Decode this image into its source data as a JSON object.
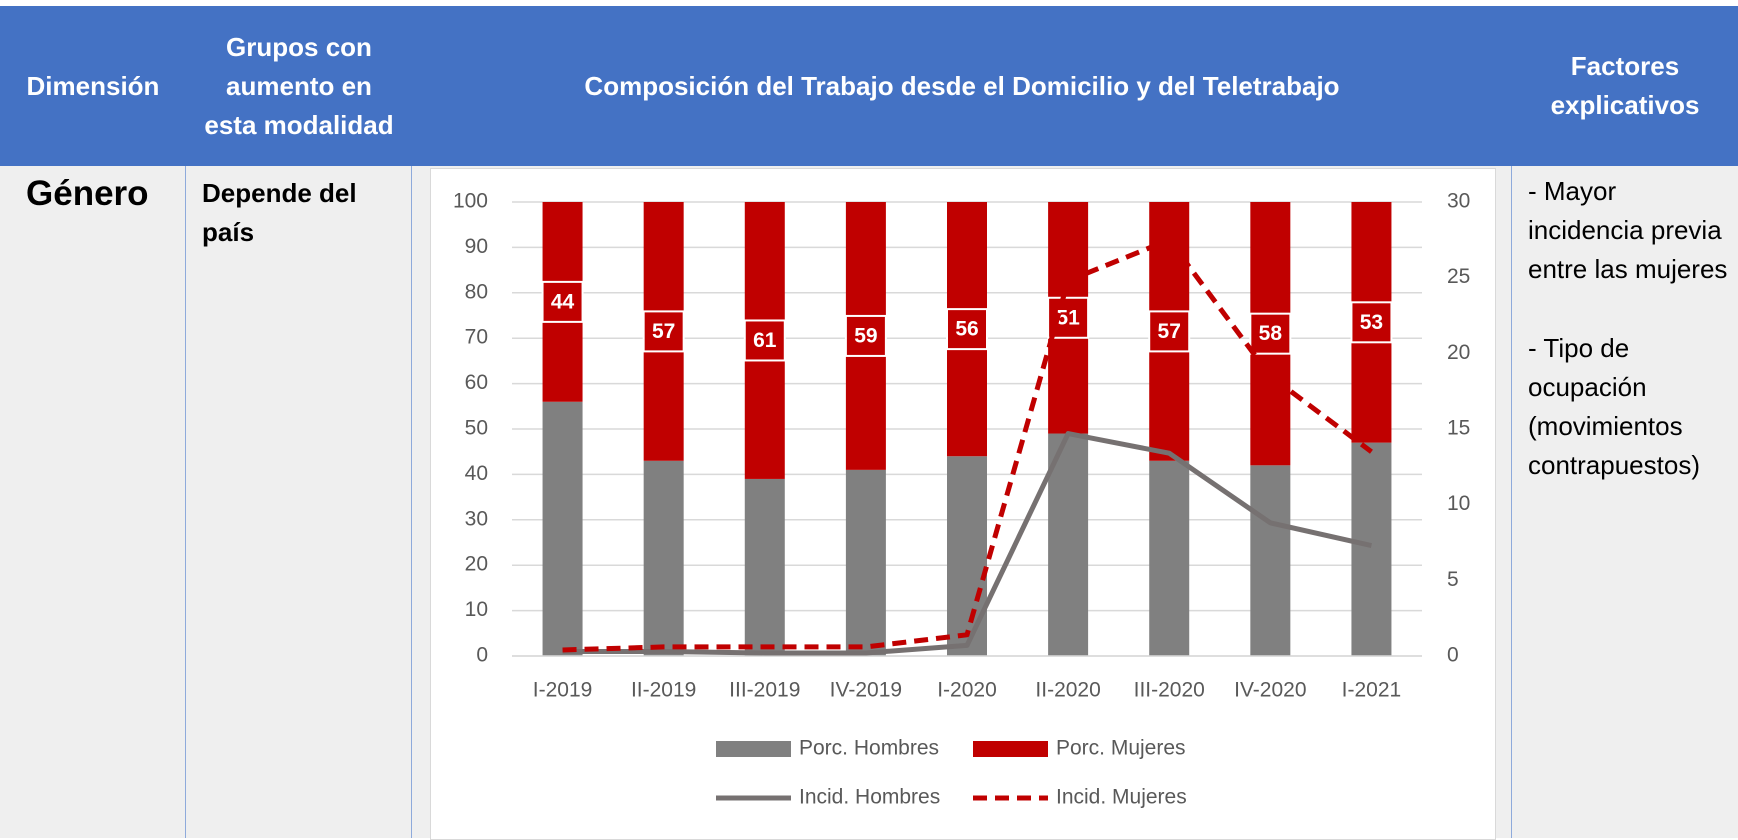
{
  "table": {
    "header": [
      "Dimensión",
      "Grupos con aumento en esta modalidad",
      "Composición del Trabajo desde el Domicilio y del Teletrabajo",
      "Factores explicativos"
    ],
    "rows": [
      [
        "Género",
        "Depende del país",
        [
          "- Mayor incidencia previa entre las mujeres",
          "- Tipo de ocupación (movimientos contrapuestos)"
        ]
      ]
    ]
  },
  "chart_data": {
    "type": "bar",
    "stacked": true,
    "categories": [
      "I-2019",
      "II-2019",
      "III-2019",
      "IV-2019",
      "I-2020",
      "II-2020",
      "III-2020",
      "IV-2020",
      "I-2021"
    ],
    "series": [
      {
        "name": "Porc. Hombres",
        "type": "bar",
        "color": "#808080",
        "values": [
          56,
          43,
          39,
          41,
          44,
          49,
          43,
          42,
          47
        ]
      },
      {
        "name": "Porc. Mujeres",
        "type": "bar",
        "color": "#c00000",
        "values": [
          44,
          57,
          61,
          59,
          56,
          51,
          57,
          58,
          53
        ],
        "show_labels": true
      },
      {
        "name": "Incid. Hombres",
        "type": "line",
        "axis": "y2",
        "color": "#767171",
        "dashed": false,
        "values": [
          0.3,
          0.3,
          0.2,
          0.2,
          0.7,
          14.7,
          13.4,
          8.8,
          7.3
        ]
      },
      {
        "name": "Incid. Mujeres",
        "type": "line",
        "axis": "y2",
        "color": "#c00000",
        "dashed": true,
        "values": [
          0.4,
          0.6,
          0.6,
          0.6,
          1.4,
          24.8,
          27.5,
          18.5,
          13.5
        ]
      }
    ],
    "ylim": [
      0,
      100
    ],
    "yticks": [
      0,
      10,
      20,
      30,
      40,
      50,
      60,
      70,
      80,
      90,
      100
    ],
    "y2lim": [
      0,
      30
    ],
    "y2ticks": [
      0,
      5,
      10,
      15,
      20,
      25,
      30
    ],
    "grid": true,
    "legend": "bottom"
  }
}
